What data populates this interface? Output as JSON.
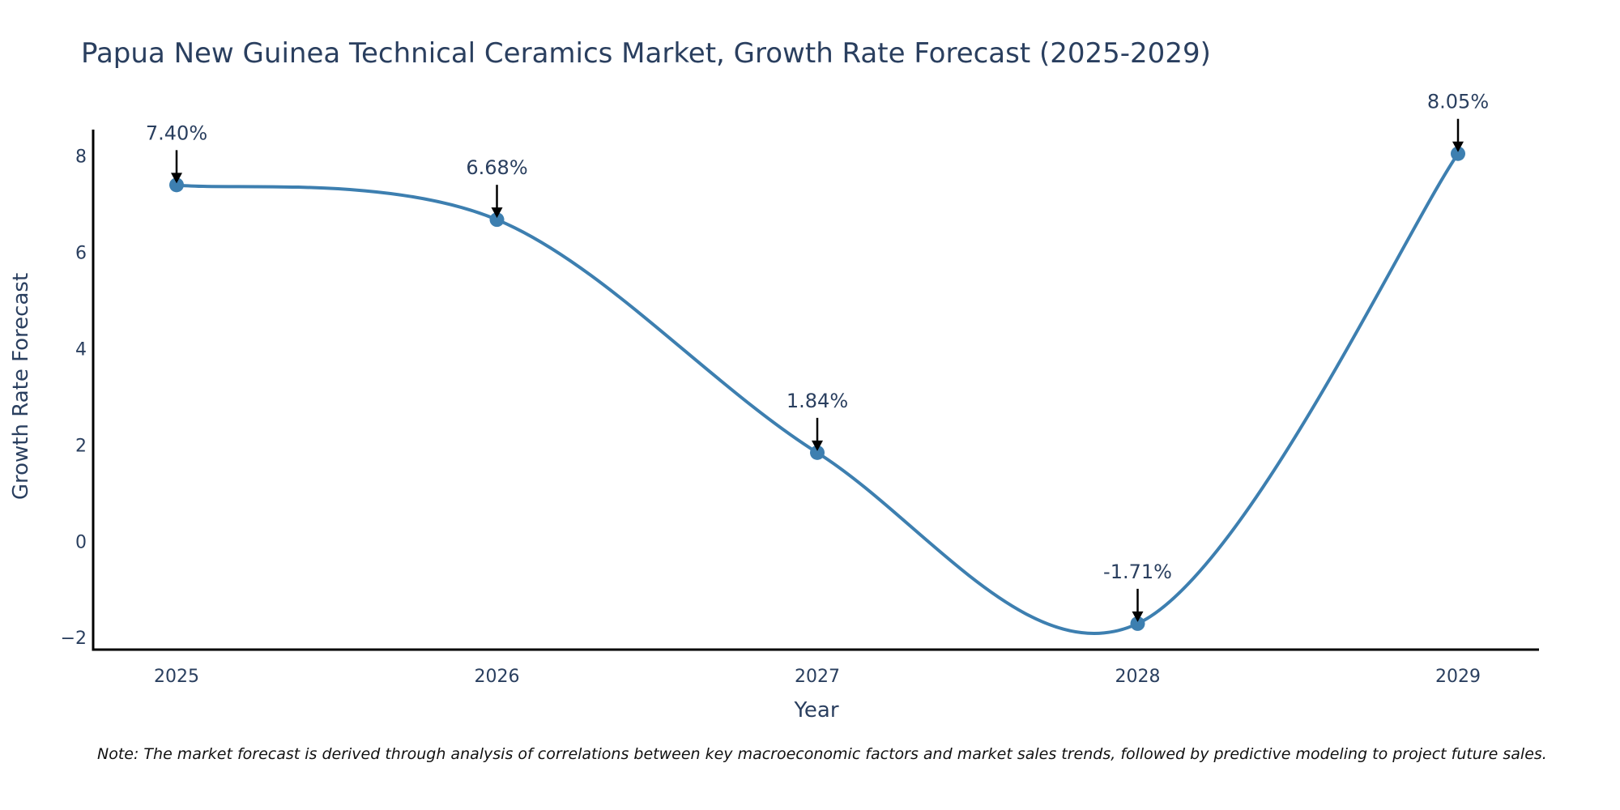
{
  "chart_data": {
    "type": "line",
    "title": "Papua New Guinea Technical Ceramics Market, Growth Rate Forecast (2025-2029)",
    "xlabel": "Year",
    "ylabel": "Growth Rate Forecast",
    "categories": [
      "2025",
      "2026",
      "2027",
      "2028",
      "2029"
    ],
    "series": [
      {
        "name": "Growth Rate Forecast",
        "values": [
          7.4,
          6.68,
          1.84,
          -1.71,
          8.05
        ]
      }
    ],
    "data_labels": [
      "7.40%",
      "6.68%",
      "1.84%",
      "-1.71%",
      "8.05%"
    ],
    "yticks": [
      -2,
      0,
      2,
      4,
      6,
      8
    ],
    "ytick_labels": [
      "−2",
      "0",
      "2",
      "4",
      "6",
      "8"
    ],
    "ylim": [
      -2.25,
      8.55
    ],
    "line_color": "#3d7fb0",
    "marker_color": "#3d7fb0",
    "grid": false,
    "note": "Note: The market forecast is derived through analysis of correlations between key macroeconomic factors and market sales trends, followed by predictive modeling to project future sales."
  }
}
